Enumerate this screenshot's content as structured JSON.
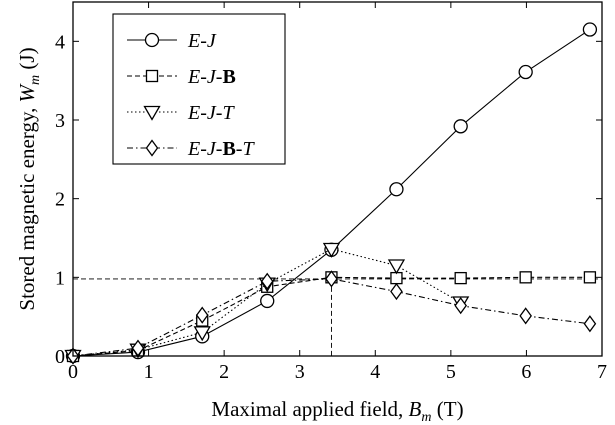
{
  "chart_data": {
    "type": "line",
    "xlabel": {
      "prefix": "Maximal applied field, ",
      "var": "B",
      "sub": "m",
      "suffix": " (T)"
    },
    "ylabel": {
      "prefix": "Stored magnetic energy, ",
      "var": "W",
      "sub": "m",
      "suffix": " (J)"
    },
    "xlim": [
      0,
      7
    ],
    "ylim": [
      0,
      4.5
    ],
    "x_ticks": [
      0,
      1,
      2,
      3,
      4,
      5,
      6,
      7
    ],
    "y_ticks": [
      0,
      1,
      2,
      3,
      4
    ],
    "grid": false,
    "legend_position": "top-left",
    "series": [
      {
        "name": "E-J",
        "label_parts": [
          {
            "t": "E",
            "s": "i"
          },
          {
            "t": "-",
            "s": "n"
          },
          {
            "t": "J",
            "s": "i"
          }
        ],
        "marker": "circle",
        "dash": "",
        "x": [
          0,
          0.86,
          1.71,
          2.57,
          3.42,
          4.28,
          5.13,
          5.99,
          6.84
        ],
        "y": [
          0,
          0.05,
          0.25,
          0.7,
          1.35,
          2.12,
          2.92,
          3.61,
          4.15
        ]
      },
      {
        "name": "E-J-B",
        "label_parts": [
          {
            "t": "E",
            "s": "i"
          },
          {
            "t": "-",
            "s": "n"
          },
          {
            "t": "J",
            "s": "i"
          },
          {
            "t": "-",
            "s": "n"
          },
          {
            "t": "B",
            "s": "b"
          }
        ],
        "marker": "square",
        "dash": "5,3",
        "x": [
          0,
          0.86,
          1.71,
          2.57,
          3.42,
          4.28,
          5.13,
          5.99,
          6.84
        ],
        "y": [
          0,
          0.07,
          0.45,
          0.88,
          1.0,
          0.99,
          0.99,
          1.0,
          1.0
        ]
      },
      {
        "name": "E-J-T",
        "label_parts": [
          {
            "t": "E",
            "s": "i"
          },
          {
            "t": "-",
            "s": "n"
          },
          {
            "t": "J",
            "s": "i"
          },
          {
            "t": "-",
            "s": "n"
          },
          {
            "t": "T",
            "s": "i"
          }
        ],
        "marker": "triangle-down",
        "dash": "1.5,2.5",
        "x": [
          0,
          0.86,
          1.71,
          2.57,
          3.42,
          4.28,
          5.13
        ],
        "y": [
          0,
          0.08,
          0.3,
          0.92,
          1.36,
          1.15,
          0.68
        ]
      },
      {
        "name": "E-J-B-T",
        "label_parts": [
          {
            "t": "E",
            "s": "i"
          },
          {
            "t": "-",
            "s": "n"
          },
          {
            "t": "J",
            "s": "i"
          },
          {
            "t": "-",
            "s": "n"
          },
          {
            "t": "B",
            "s": "b"
          },
          {
            "t": "-",
            "s": "n"
          },
          {
            "t": "T",
            "s": "i"
          }
        ],
        "marker": "diamond",
        "dash": "6,3,1.5,3",
        "x": [
          0,
          0.86,
          1.71,
          2.57,
          3.42,
          4.28,
          5.13,
          5.99,
          6.84
        ],
        "y": [
          0,
          0.1,
          0.52,
          0.95,
          0.98,
          0.82,
          0.64,
          0.51,
          0.41
        ]
      }
    ],
    "reference_lines": {
      "y": 0.98,
      "x": 3.42
    }
  }
}
